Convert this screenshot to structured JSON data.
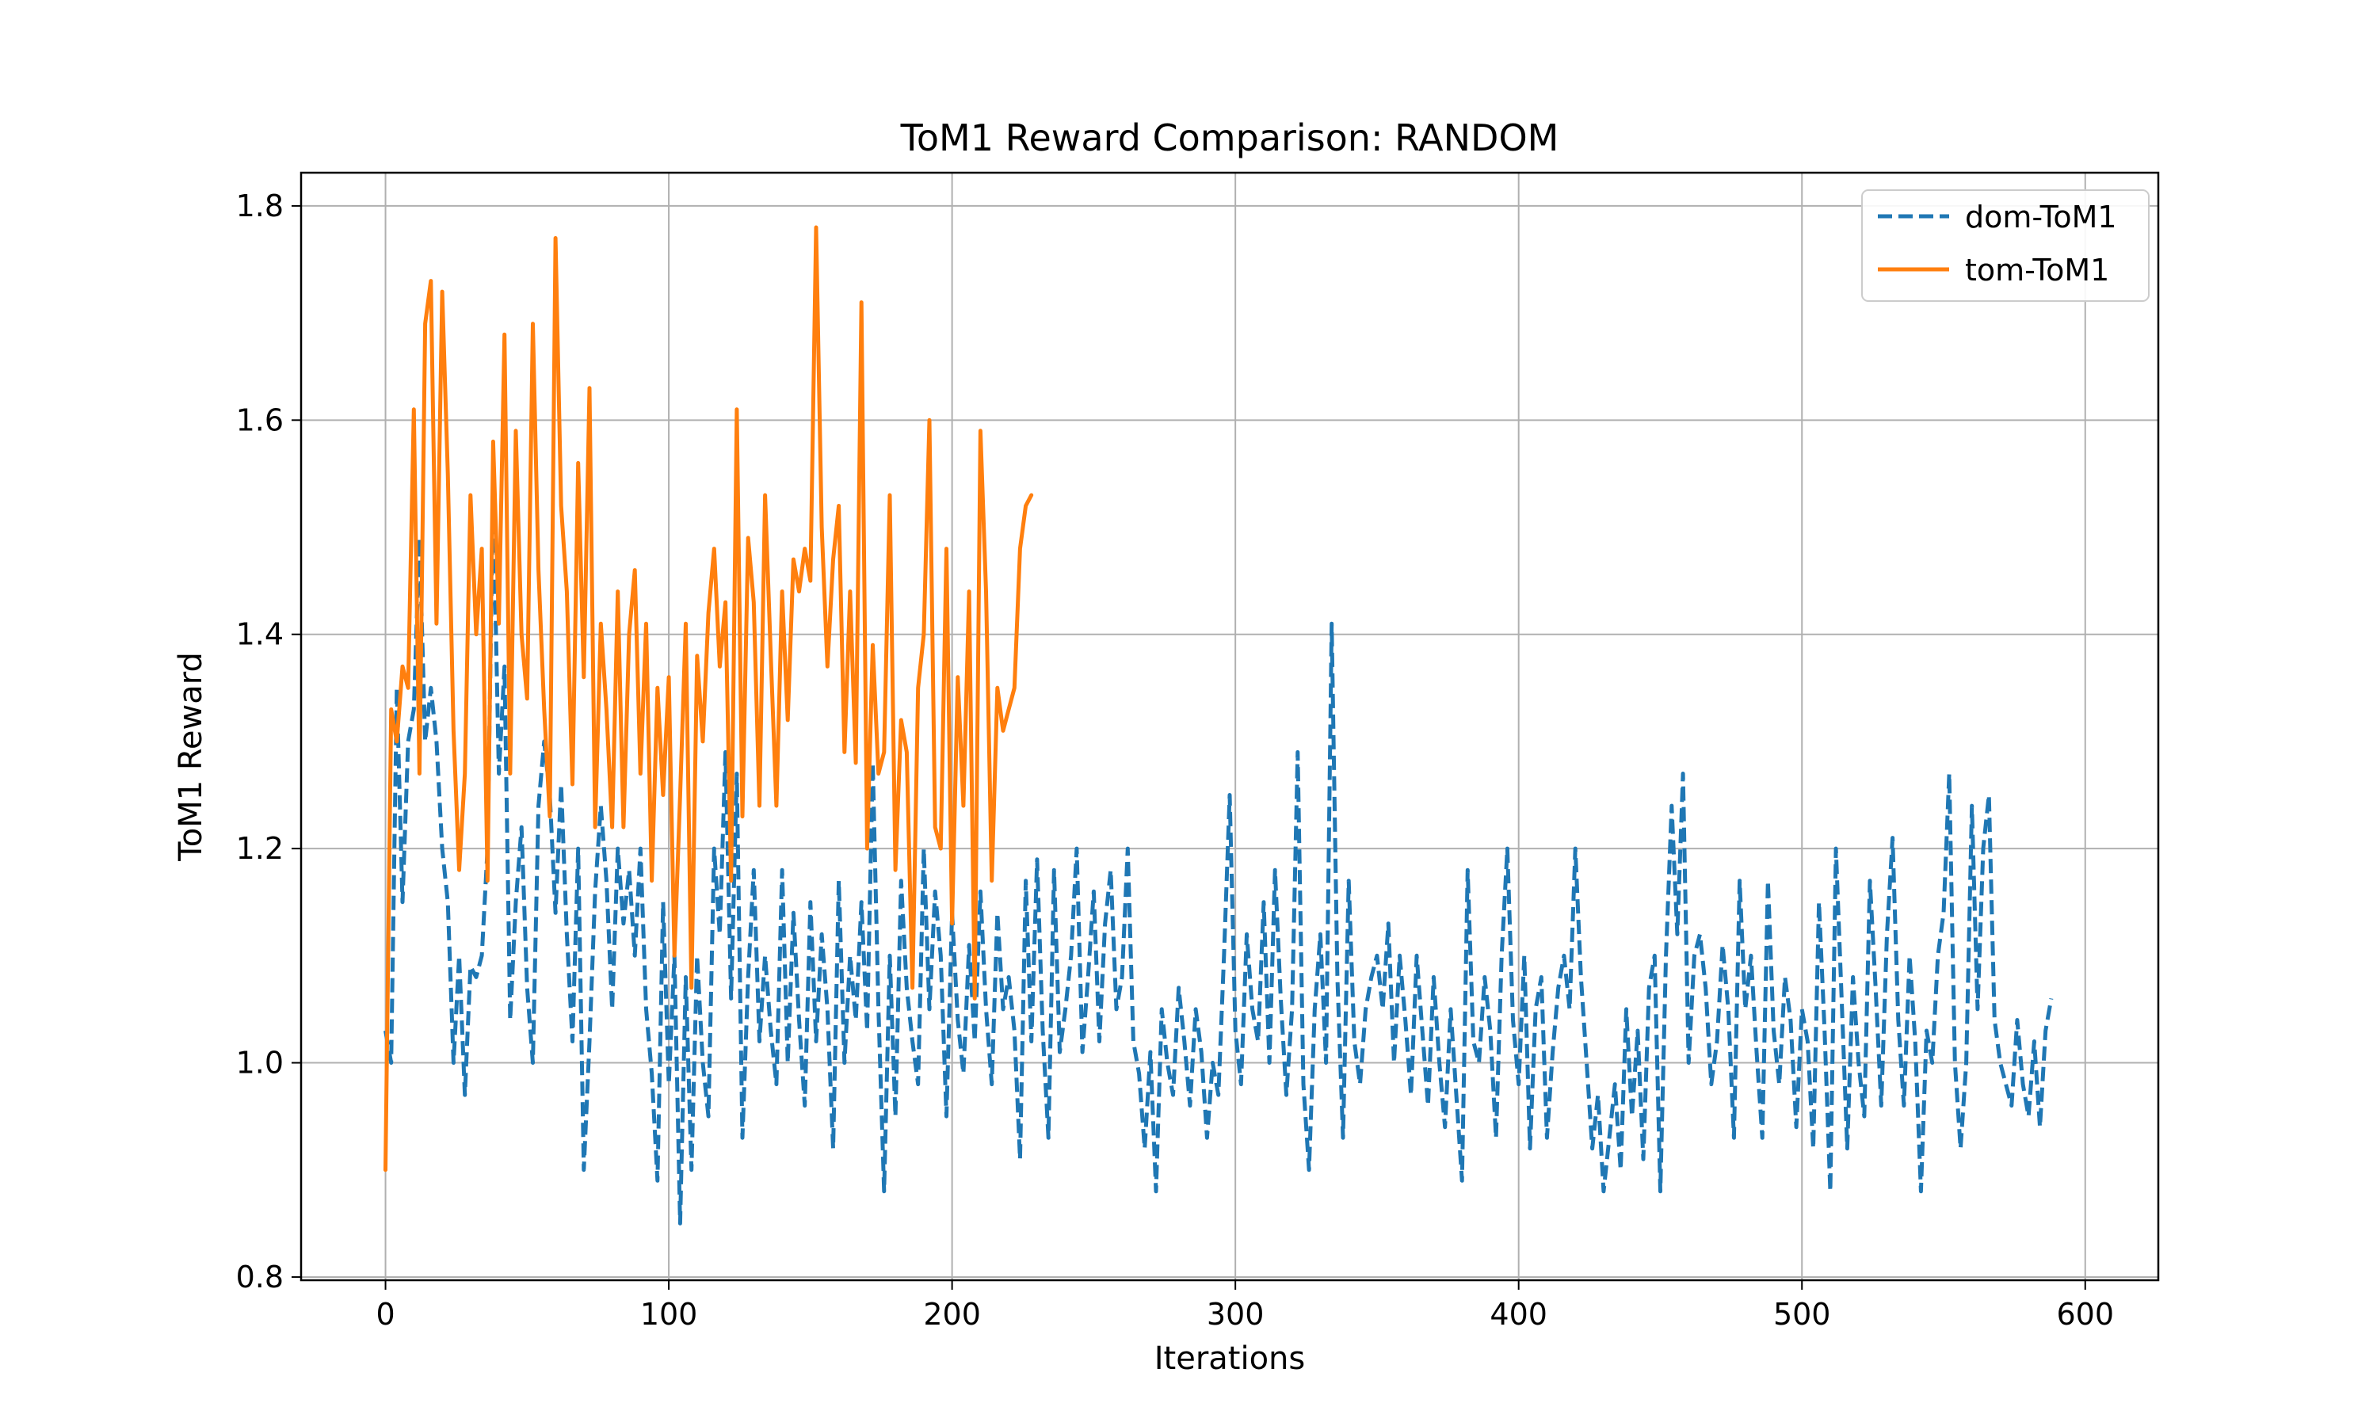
{
  "chart_data": {
    "type": "line",
    "title": "ToM1 Reward Comparison: RANDOM",
    "xlabel": "Iterations",
    "ylabel": "ToM1 Reward",
    "xlim": [
      -29.8,
      625.8
    ],
    "ylim": [
      0.797,
      1.831
    ],
    "xticks": [
      0,
      100,
      200,
      300,
      400,
      500,
      600
    ],
    "yticks": [
      0.8,
      1.0,
      1.2,
      1.4,
      1.6,
      1.8
    ],
    "xtick_labels": [
      "0",
      "100",
      "200",
      "300",
      "400",
      "500",
      "600"
    ],
    "ytick_labels": [
      "0.8",
      "1.0",
      "1.2",
      "1.4",
      "1.6",
      "1.8"
    ],
    "grid": true,
    "legend_position": "top-right",
    "series": [
      {
        "name": "dom-ToM1",
        "color": "#1f77b4",
        "style": "dashed",
        "x_start": 0,
        "x_step": 2,
        "values": [
          1.03,
          1.0,
          1.35,
          1.15,
          1.3,
          1.33,
          1.49,
          1.3,
          1.35,
          1.3,
          1.2,
          1.15,
          1.0,
          1.1,
          0.97,
          1.09,
          1.08,
          1.1,
          1.2,
          1.53,
          1.27,
          1.37,
          1.04,
          1.15,
          1.22,
          1.07,
          1.0,
          1.24,
          1.3,
          1.25,
          1.14,
          1.26,
          1.12,
          1.02,
          1.2,
          0.9,
          1.02,
          1.16,
          1.24,
          1.17,
          1.05,
          1.2,
          1.13,
          1.18,
          1.1,
          1.2,
          1.05,
          0.99,
          0.89,
          1.15,
          0.98,
          1.1,
          0.85,
          1.08,
          0.9,
          1.1,
          1.0,
          0.95,
          1.2,
          1.12,
          1.29,
          1.06,
          1.27,
          0.93,
          1.08,
          1.18,
          1.02,
          1.1,
          1.03,
          0.98,
          1.18,
          1.0,
          1.14,
          1.04,
          0.96,
          1.15,
          1.02,
          1.12,
          1.05,
          0.92,
          1.17,
          1.0,
          1.1,
          1.04,
          1.15,
          1.03,
          1.28,
          1.05,
          0.88,
          1.1,
          0.95,
          1.17,
          1.07,
          1.02,
          0.98,
          1.2,
          1.05,
          1.16,
          1.1,
          0.95,
          1.14,
          1.04,
          0.99,
          1.11,
          1.02,
          1.16,
          1.05,
          0.98,
          1.14,
          1.05,
          1.08,
          1.03,
          0.91,
          1.17,
          1.02,
          1.19,
          1.03,
          0.93,
          1.18,
          1.01,
          1.05,
          1.1,
          1.2,
          1.01,
          1.08,
          1.16,
          1.02,
          1.13,
          1.18,
          1.05,
          1.08,
          1.2,
          1.02,
          0.99,
          0.92,
          1.01,
          0.88,
          1.05,
          1.0,
          0.97,
          1.07,
          1.02,
          0.96,
          1.05,
          1.01,
          0.93,
          1.0,
          0.97,
          1.1,
          1.25,
          1.03,
          0.98,
          1.12,
          1.05,
          1.02,
          1.15,
          1.0,
          1.18,
          1.06,
          0.97,
          1.05,
          1.29,
          0.98,
          0.9,
          1.05,
          1.12,
          1.0,
          1.41,
          1.08,
          0.93,
          1.17,
          1.02,
          0.98,
          1.05,
          1.08,
          1.1,
          1.05,
          1.13,
          1.0,
          1.1,
          1.04,
          0.97,
          1.1,
          1.03,
          0.96,
          1.08,
          1.0,
          0.94,
          1.05,
          0.97,
          0.89,
          1.18,
          1.02,
          1.0,
          1.08,
          1.03,
          0.93,
          1.1,
          1.2,
          1.04,
          0.98,
          1.1,
          0.92,
          1.05,
          1.08,
          0.93,
          1.01,
          1.07,
          1.1,
          1.05,
          1.2,
          1.08,
          1.0,
          0.92,
          0.97,
          0.88,
          0.93,
          0.98,
          0.9,
          1.05,
          0.95,
          1.03,
          0.91,
          1.07,
          1.1,
          0.88,
          1.1,
          1.24,
          1.12,
          1.27,
          1.0,
          1.1,
          1.12,
          1.07,
          0.98,
          1.02,
          1.11,
          1.05,
          0.93,
          1.17,
          1.05,
          1.1,
          1.01,
          0.93,
          1.17,
          1.03,
          0.98,
          1.08,
          1.04,
          0.94,
          1.05,
          1.02,
          0.92,
          1.15,
          1.03,
          0.88,
          1.2,
          1.06,
          0.92,
          1.08,
          1.0,
          0.95,
          1.17,
          1.07,
          0.96,
          1.12,
          1.21,
          1.04,
          0.96,
          1.1,
          1.02,
          0.88,
          1.03,
          1.0,
          1.1,
          1.14,
          1.27,
          1.0,
          0.92,
          1.0,
          1.24,
          1.05,
          1.2,
          1.25,
          1.04,
          1.0,
          0.98,
          0.96,
          1.04,
          0.98,
          0.95,
          1.02,
          0.94,
          1.03,
          1.06
        ]
      },
      {
        "name": "tom-ToM1",
        "color": "#ff7f0e",
        "style": "solid",
        "x_start": 0,
        "x_step": 2,
        "values": [
          0.9,
          1.33,
          1.3,
          1.37,
          1.35,
          1.61,
          1.27,
          1.69,
          1.73,
          1.41,
          1.72,
          1.55,
          1.31,
          1.18,
          1.27,
          1.53,
          1.4,
          1.48,
          1.17,
          1.58,
          1.41,
          1.68,
          1.27,
          1.59,
          1.4,
          1.34,
          1.69,
          1.46,
          1.33,
          1.23,
          1.77,
          1.52,
          1.44,
          1.26,
          1.56,
          1.36,
          1.63,
          1.22,
          1.41,
          1.33,
          1.22,
          1.44,
          1.22,
          1.4,
          1.46,
          1.27,
          1.41,
          1.17,
          1.35,
          1.25,
          1.36,
          1.1,
          1.25,
          1.41,
          1.07,
          1.38,
          1.3,
          1.42,
          1.48,
          1.37,
          1.43,
          1.17,
          1.61,
          1.23,
          1.49,
          1.43,
          1.24,
          1.53,
          1.38,
          1.24,
          1.44,
          1.32,
          1.47,
          1.44,
          1.48,
          1.45,
          1.78,
          1.5,
          1.37,
          1.47,
          1.52,
          1.29,
          1.44,
          1.28,
          1.71,
          1.2,
          1.39,
          1.27,
          1.29,
          1.53,
          1.18,
          1.32,
          1.29,
          1.07,
          1.35,
          1.4,
          1.6,
          1.22,
          1.2,
          1.48,
          1.13,
          1.36,
          1.24,
          1.44,
          1.06,
          1.59,
          1.44,
          1.17,
          1.35,
          1.31,
          1.33,
          1.35,
          1.48,
          1.52,
          1.53
        ]
      }
    ]
  }
}
